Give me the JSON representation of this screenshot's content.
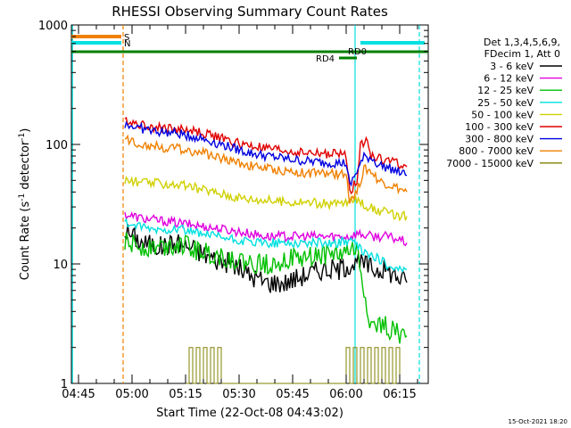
{
  "chart_data": {
    "type": "line",
    "title": "RHESSI Observing Summary Count Rates",
    "xlabel": "Start Time (22-Oct-08 04:43:02)",
    "ylabel": "Count Rate (s-1 detector-1)",
    "ylabel_main": "Count Rate (s",
    "ylabel_sup1": "-1",
    "ylabel_mid": " detector",
    "ylabel_sup2": "-1",
    "ylabel_end": ")",
    "y_scale": "log",
    "ylim": [
      1,
      1000
    ],
    "xlim_minutes": [
      0,
      100
    ],
    "y_ticks": [
      "1",
      "10",
      "100",
      "1000"
    ],
    "x_ticks": [
      {
        "label": "04:45",
        "t": 2
      },
      {
        "label": "05:00",
        "t": 17
      },
      {
        "label": "05:15",
        "t": 32
      },
      {
        "label": "05:30",
        "t": 47
      },
      {
        "label": "05:45",
        "t": 62
      },
      {
        "label": "06:00",
        "t": 77
      },
      {
        "label": "06:15",
        "t": 92
      }
    ],
    "legend": {
      "placement": "top-right",
      "header1": "Det 1,3,4,5,6,9,",
      "header2": "FDecim 1, Att 0"
    },
    "series": [
      {
        "name": "3 - 6 keV",
        "color": "#000000",
        "points": [
          [
            15,
            19
          ],
          [
            20,
            15
          ],
          [
            25,
            14
          ],
          [
            30,
            15
          ],
          [
            35,
            13
          ],
          [
            40,
            11
          ],
          [
            45,
            10
          ],
          [
            50,
            8
          ],
          [
            55,
            7
          ],
          [
            60,
            7
          ],
          [
            65,
            8
          ],
          [
            70,
            9
          ],
          [
            75,
            9
          ],
          [
            78,
            10
          ],
          [
            82,
            10
          ],
          [
            85,
            9
          ],
          [
            88,
            9
          ],
          [
            91,
            8
          ],
          [
            94,
            7
          ]
        ]
      },
      {
        "name": "6 - 12 keV",
        "color": "#e000e0",
        "points": [
          [
            15,
            26
          ],
          [
            20,
            24
          ],
          [
            25,
            23
          ],
          [
            30,
            22
          ],
          [
            35,
            21
          ],
          [
            40,
            20
          ],
          [
            45,
            19
          ],
          [
            50,
            18
          ],
          [
            55,
            17
          ],
          [
            60,
            17
          ],
          [
            65,
            17
          ],
          [
            70,
            17
          ],
          [
            75,
            17
          ],
          [
            78,
            17
          ],
          [
            80,
            18
          ],
          [
            84,
            17
          ],
          [
            88,
            17
          ],
          [
            92,
            16
          ],
          [
            94,
            15
          ]
        ]
      },
      {
        "name": "12 - 25 keV",
        "color": "#00c000",
        "points": [
          [
            15,
            15
          ],
          [
            20,
            14
          ],
          [
            25,
            14
          ],
          [
            30,
            15
          ],
          [
            35,
            13
          ],
          [
            40,
            12
          ],
          [
            45,
            11
          ],
          [
            50,
            10
          ],
          [
            55,
            10
          ],
          [
            60,
            11
          ],
          [
            65,
            11
          ],
          [
            70,
            12
          ],
          [
            75,
            12
          ],
          [
            78,
            13
          ],
          [
            80,
            13
          ],
          [
            82,
            6
          ],
          [
            84,
            3
          ],
          [
            88,
            3
          ],
          [
            92,
            2.6
          ],
          [
            94,
            2.5
          ]
        ]
      },
      {
        "name": "25 - 50 keV",
        "color": "#00e0e0",
        "points": [
          [
            15,
            22
          ],
          [
            20,
            20
          ],
          [
            25,
            19
          ],
          [
            30,
            20
          ],
          [
            35,
            18
          ],
          [
            40,
            17
          ],
          [
            45,
            16
          ],
          [
            50,
            15
          ],
          [
            55,
            15
          ],
          [
            60,
            15
          ],
          [
            65,
            15
          ],
          [
            70,
            15
          ],
          [
            75,
            15
          ],
          [
            78,
            16
          ],
          [
            80,
            14
          ],
          [
            83,
            12
          ],
          [
            86,
            11
          ],
          [
            88,
            10
          ],
          [
            92,
            9
          ],
          [
            94,
            9
          ]
        ]
      },
      {
        "name": "50 - 100 keV",
        "color": "#d0d000",
        "points": [
          [
            15,
            50
          ],
          [
            20,
            48
          ],
          [
            25,
            47
          ],
          [
            30,
            46
          ],
          [
            35,
            43
          ],
          [
            40,
            40
          ],
          [
            45,
            37
          ],
          [
            50,
            35
          ],
          [
            55,
            34
          ],
          [
            60,
            33
          ],
          [
            65,
            33
          ],
          [
            70,
            32
          ],
          [
            75,
            32
          ],
          [
            78,
            33
          ],
          [
            80,
            35
          ],
          [
            83,
            30
          ],
          [
            86,
            28
          ],
          [
            90,
            26
          ],
          [
            94,
            25
          ]
        ]
      },
      {
        "name": "100 - 300 keV",
        "color": "#e00000",
        "points": [
          [
            15,
            160
          ],
          [
            20,
            145
          ],
          [
            25,
            138
          ],
          [
            30,
            135
          ],
          [
            35,
            128
          ],
          [
            40,
            118
          ],
          [
            45,
            105
          ],
          [
            50,
            97
          ],
          [
            55,
            92
          ],
          [
            60,
            88
          ],
          [
            65,
            85
          ],
          [
            70,
            84
          ],
          [
            75,
            83
          ],
          [
            77,
            82
          ],
          [
            78,
            40
          ],
          [
            80,
            50
          ],
          [
            81,
            105
          ],
          [
            83,
            105
          ],
          [
            84,
            80
          ],
          [
            87,
            75
          ],
          [
            90,
            72
          ],
          [
            94,
            65
          ]
        ]
      },
      {
        "name": "300 - 800 keV",
        "color": "#0000e0",
        "points": [
          [
            15,
            148
          ],
          [
            20,
            135
          ],
          [
            25,
            127
          ],
          [
            30,
            123
          ],
          [
            35,
            115
          ],
          [
            40,
            105
          ],
          [
            45,
            94
          ],
          [
            50,
            85
          ],
          [
            55,
            80
          ],
          [
            60,
            76
          ],
          [
            65,
            73
          ],
          [
            70,
            71
          ],
          [
            75,
            70
          ],
          [
            77,
            70
          ],
          [
            78,
            45
          ],
          [
            80,
            60
          ],
          [
            82,
            78
          ],
          [
            84,
            78
          ],
          [
            86,
            68
          ],
          [
            90,
            62
          ],
          [
            94,
            55
          ]
        ]
      },
      {
        "name": "800 - 7000 keV",
        "color": "#f08000",
        "points": [
          [
            15,
            110
          ],
          [
            20,
            100
          ],
          [
            25,
            95
          ],
          [
            30,
            92
          ],
          [
            35,
            87
          ],
          [
            40,
            80
          ],
          [
            45,
            73
          ],
          [
            50,
            67
          ],
          [
            55,
            63
          ],
          [
            60,
            60
          ],
          [
            65,
            58
          ],
          [
            70,
            57
          ],
          [
            75,
            56
          ],
          [
            77,
            56
          ],
          [
            78,
            35
          ],
          [
            80,
            40
          ],
          [
            82,
            62
          ],
          [
            84,
            60
          ],
          [
            86,
            50
          ],
          [
            90,
            45
          ],
          [
            94,
            40
          ]
        ]
      },
      {
        "name": "7000 - 15000 keV",
        "color": "#808000",
        "points": [
          [
            32,
            1
          ],
          [
            33,
            2
          ],
          [
            34,
            1
          ],
          [
            35,
            2
          ],
          [
            36,
            1
          ],
          [
            37,
            2
          ],
          [
            38,
            1
          ],
          [
            39,
            2
          ],
          [
            40,
            1
          ],
          [
            41,
            2
          ],
          [
            42,
            1
          ],
          [
            76,
            1
          ],
          [
            77,
            2
          ],
          [
            78,
            1
          ],
          [
            79,
            2
          ],
          [
            80,
            1
          ],
          [
            81,
            2
          ],
          [
            82,
            1
          ],
          [
            83,
            2
          ],
          [
            84,
            1
          ],
          [
            85,
            2
          ],
          [
            86,
            1
          ],
          [
            87,
            2
          ],
          [
            88,
            1
          ],
          [
            89,
            2
          ],
          [
            90,
            1
          ],
          [
            91,
            2
          ],
          [
            92,
            1
          ]
        ]
      }
    ],
    "state_bars": [
      {
        "label": "S",
        "color": "#f08000",
        "t0": 0,
        "t1": 14
      },
      {
        "label": "N",
        "color": "#00e0e0",
        "t0": 0,
        "t1": 14
      }
    ],
    "rd_labels": {
      "rd0": "RD0",
      "rd4": "RD4"
    },
    "green_bar_color": "#008000",
    "vlines": [
      {
        "t": 0.3,
        "color": "#00e0e0",
        "style": "solid"
      },
      {
        "t": 14.5,
        "color": "#f08000",
        "style": "dashed"
      },
      {
        "t": 79.5,
        "color": "#00e0e0",
        "style": "solid"
      },
      {
        "t": 97.5,
        "color": "#00e0e0",
        "style": "dashed"
      }
    ]
  },
  "footer": {
    "timestamp": "15-Oct-2021 18:20"
  }
}
